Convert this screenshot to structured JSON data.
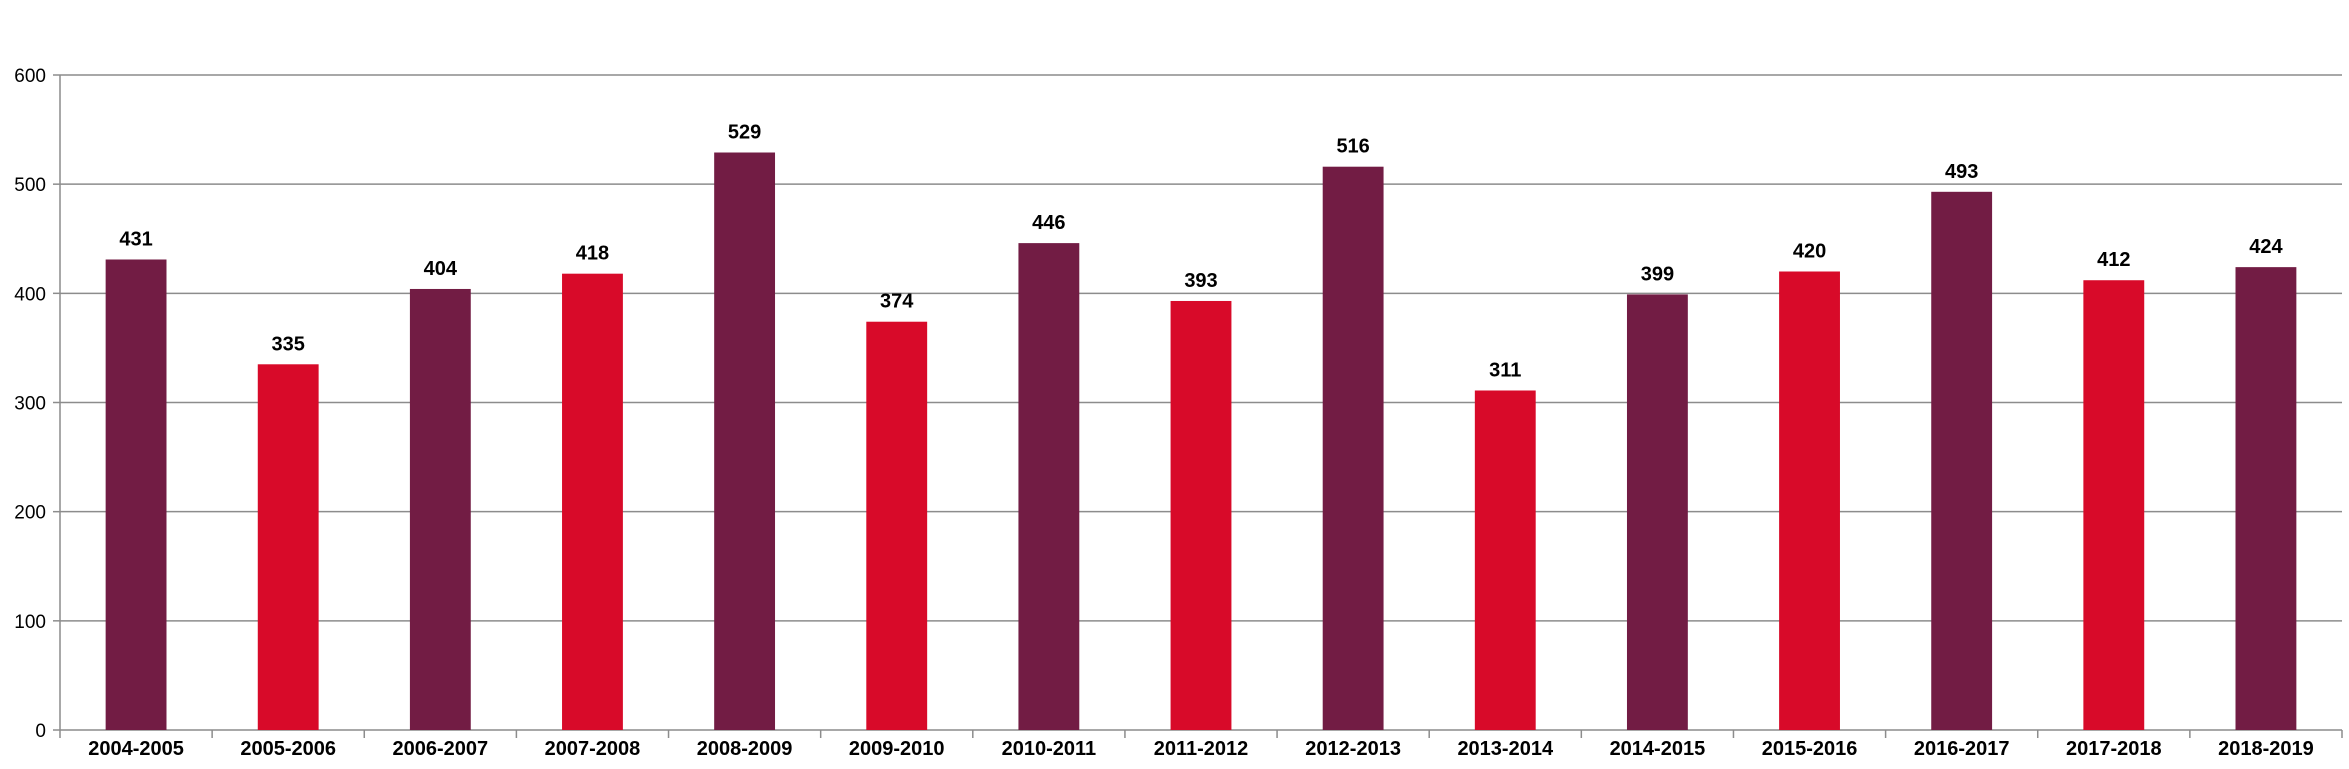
{
  "chart_data": {
    "type": "bar",
    "title": "",
    "xlabel": "",
    "ylabel": "",
    "ylim": [
      0,
      600
    ],
    "yticks": [
      0,
      100,
      200,
      300,
      400,
      500,
      600
    ],
    "grid": true,
    "legend": "none",
    "categories": [
      "2004-2005",
      "2005-2006",
      "2006-2007",
      "2007-2008",
      "2008-2009",
      "2009-2010",
      "2010-2011",
      "2011-2012",
      "2012-2013",
      "2013-2014",
      "2014-2015",
      "2015-2016",
      "2016-2017",
      "2017-2018",
      "2018-2019"
    ],
    "values": [
      431,
      335,
      404,
      418,
      529,
      374,
      446,
      393,
      516,
      311,
      399,
      420,
      493,
      412,
      424
    ],
    "bar_colors": [
      "#721c44",
      "#d80a29",
      "#721c44",
      "#d80a29",
      "#721c44",
      "#d80a29",
      "#721c44",
      "#d80a29",
      "#721c44",
      "#d80a29",
      "#721c44",
      "#d80a29",
      "#721c44",
      "#d80a29",
      "#721c44"
    ],
    "grid_color": "#8c8c8c",
    "axis_color": "#8c8c8c"
  }
}
